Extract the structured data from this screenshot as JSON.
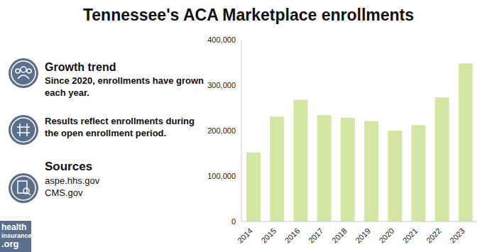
{
  "chart_data": {
    "type": "bar",
    "title": "Tennessee's ACA Marketplace enrollments",
    "categories": [
      "2014",
      "2015",
      "2016",
      "2017",
      "2018",
      "2019",
      "2020",
      "2021",
      "2022",
      "2023"
    ],
    "values": [
      152000,
      231000,
      268000,
      234000,
      228000,
      221000,
      200000,
      212000,
      273000,
      348000
    ],
    "color": "#d3e6a4",
    "ylim": [
      0,
      400000
    ],
    "yticks": [
      0,
      {
        "value": 100000,
        "label": "100,000"
      },
      {
        "value": 200000,
        "label": "200,000"
      },
      {
        "value": 300000,
        "label": "300,000"
      },
      {
        "value": 400000,
        "label": "400,000"
      }
    ],
    "grid": false,
    "annotations": [
      "Growth trend",
      "Since 2020, enrollments have grown each year.",
      "Results reflect enrollments during the open enrollment period.",
      "Sources",
      "aspe.hhs.gov",
      "CMS.gov",
      "health",
      "insurance",
      ".org"
    ]
  }
}
